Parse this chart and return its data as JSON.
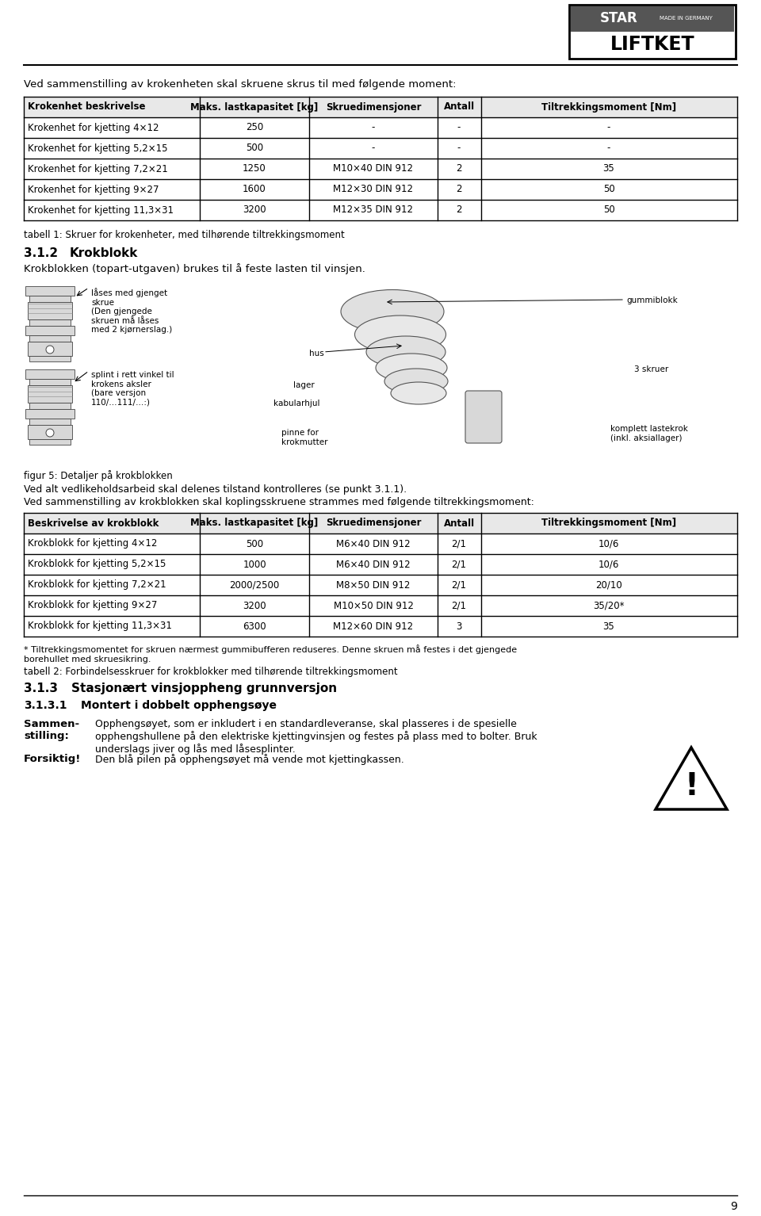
{
  "title_text": "Ved sammenstilling av krokenheten skal skruene skrus til med følgende moment:",
  "table1_headers": [
    "Krokenhet beskrivelse",
    "Maks. lastkapasitet [kg]",
    "Skruedimensjoner",
    "Antall",
    "Tiltrekkingsmoment [Nm]"
  ],
  "table1_rows": [
    [
      "Krokenhet for kjetting 4×12",
      "250",
      "-",
      "-",
      "-"
    ],
    [
      "Krokenhet for kjetting 5,2×15",
      "500",
      "-",
      "-",
      "-"
    ],
    [
      "Krokenhet for kjetting 7,2×21",
      "1250",
      "M10×40 DIN 912",
      "2",
      "35"
    ],
    [
      "Krokenhet for kjetting 9×27",
      "1600",
      "M12×30 DIN 912",
      "2",
      "50"
    ],
    [
      "Krokenhet for kjetting 11,3×31",
      "3200",
      "M12×35 DIN 912",
      "2",
      "50"
    ]
  ],
  "caption1": "tabell 1: Skruer for krokenheter, med tilhørende tiltrekkingsmoment",
  "section312": "3.1.2",
  "section312_title": "Krokblokk",
  "section312_text": "Krokblokken (topart-utgaven) brukes til å feste lasten til vinsjen.",
  "label_lasesmed": "låses med gjenget\nskrue\n(Den gjengede\nskruen må låses\nmed 2 kjørnerslag.)",
  "label_splint": "splint i rett vinkel til\nkrokens aksler\n(bare versjon\n110/…111/…:)",
  "label_hus": "hus",
  "label_lager": "lager",
  "label_kabularhjul": "kabularhjul",
  "label_pinne": "pinne for\nkrokmutter",
  "label_gummiblokk": "gummiblokk",
  "label_3skruer": "3 skruer",
  "label_komplett": "komplett lastekrok\n(inkl. aksiallager)",
  "fig5_caption": "figur 5: Detaljer på krokblokken",
  "section_text2": "Ved alt vedlikeholdsarbeid skal delenes tilstand kontrolleres (se punkt 3.1.1).",
  "section_text3": "Ved sammenstilling av krokblokken skal koplingsskruene strammes med følgende tiltrekkingsmoment:",
  "table2_headers": [
    "Beskrivelse av krokblokk",
    "Maks. lastkapasitet [kg]",
    "Skruedimensjoner",
    "Antall",
    "Tiltrekkingsmoment [Nm]"
  ],
  "table2_rows": [
    [
      "Krokblokk for kjetting 4×12",
      "500",
      "M6×40 DIN 912",
      "2/1",
      "10/6"
    ],
    [
      "Krokblokk for kjetting 5,2×15",
      "1000",
      "M6×40 DIN 912",
      "2/1",
      "10/6"
    ],
    [
      "Krokblokk for kjetting 7,2×21",
      "2000/2500",
      "M8×50 DIN 912",
      "2/1",
      "20/10"
    ],
    [
      "Krokblokk for kjetting 9×27",
      "3200",
      "M10×50 DIN 912",
      "2/1",
      "35/20*"
    ],
    [
      "Krokblokk for kjetting 11,3×31",
      "6300",
      "M12×60 DIN 912",
      "3",
      "35"
    ]
  ],
  "footnote": "* Tiltrekkingsmomentet for skruen nærmest gummibufferen reduseres. Denne skruen må festes i det gjengede\nborehullet med skruesikring.",
  "caption2": "tabell 2: Forbindelsesskruer for krokblokker med tilhørende tiltrekkingsmoment",
  "section313": "3.1.3",
  "section313_title": "Stasjonært vinsjoppheng grunnversjon",
  "section3131": "3.1.3.1",
  "section3131_title": "Montert i dobbelt opphengsøye",
  "sammen_label": "Sammen-\nstilling:",
  "sammen_text": "Opphengsøyet, som er inkludert i en standardleveranse, skal plasseres i de spesielle\nopphengshullene på den elektriske kjettingvinsjen og festes på plass med to bolter. Bruk\nunderslags jiver og lås med låsesplinter.",
  "forsiktig_label": "Forsiktig!",
  "forsiktig_text": "Den blå pilen på opphengsøyet må vende mot kjettingkassen.",
  "page_number": "9",
  "bg_color": "#ffffff",
  "text_color": "#000000",
  "header_bg": "#e8e8e8",
  "table_border": "#000000",
  "logo_star": "STAR",
  "logo_made": "MADE IN GERMANY",
  "logo_liftket": "LIFTKET"
}
